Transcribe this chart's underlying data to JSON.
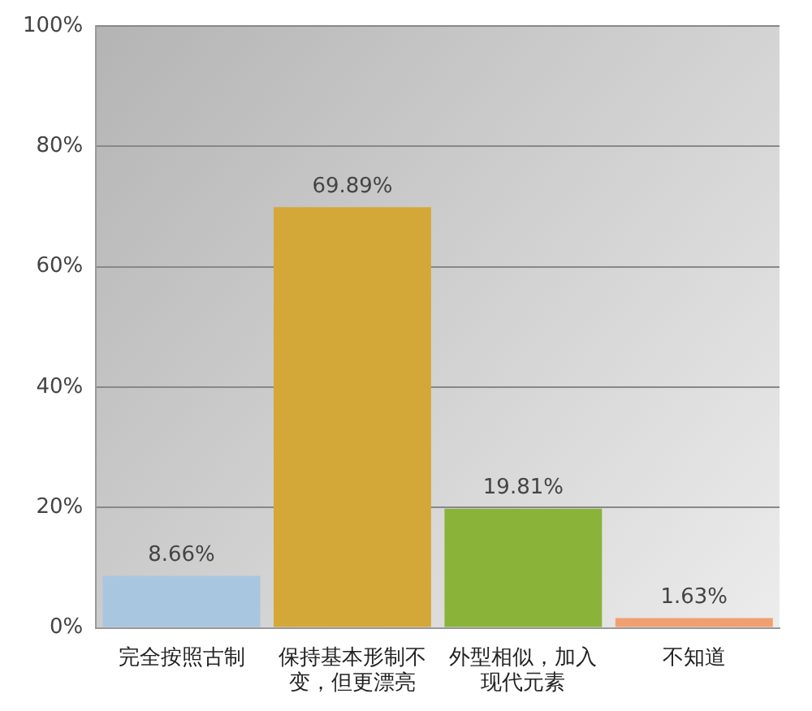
{
  "chart_data": {
    "type": "bar",
    "categories": [
      "完全按照古制",
      "保持基本形制不变，但更漂亮",
      "外型相似，加入现代元素",
      "不知道"
    ],
    "values": [
      8.66,
      69.89,
      19.81,
      1.63
    ],
    "colors": [
      "#a9c6e0",
      "#d4a838",
      "#8ab33a",
      "#f0a070"
    ],
    "value_labels": [
      "8.66%",
      "69.89%",
      "19.81%",
      "1.63%"
    ],
    "ylim": [
      0,
      100
    ],
    "yticks": [
      {
        "value": 0,
        "label": "0%"
      },
      {
        "value": 20,
        "label": "20%"
      },
      {
        "value": 40,
        "label": "40%"
      },
      {
        "value": 60,
        "label": "60%"
      },
      {
        "value": 80,
        "label": "80%"
      },
      {
        "value": 100,
        "label": "100%"
      }
    ],
    "grid": "y"
  }
}
